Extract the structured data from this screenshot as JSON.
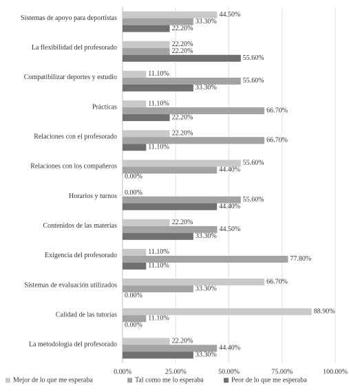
{
  "chart_data": {
    "type": "bar",
    "orientation": "horizontal",
    "categories": [
      "Sistemas de apoyo para deportistas",
      "La flexibilidad del profesorado",
      "Compatibilizar deportes y estudio",
      "Prácticas",
      "Relaciones con el profesorado",
      "Relaciones con los compañeros",
      "Horarios y turnos",
      "Contenidos de las materias",
      "Exigencia del profesorado",
      "Sistemas de evaluación utilizados",
      "Calidad de las tutorías",
      "La metodología del profesorado"
    ],
    "series": [
      {
        "name": "Mejor de lo que me esperaba",
        "color": "#c9c9c9",
        "values": [
          44.5,
          22.2,
          11.1,
          11.1,
          22.2,
          55.6,
          0,
          22.2,
          11.1,
          66.7,
          88.9,
          22.2
        ],
        "value_labels": [
          "44.50%",
          "22.20%",
          "11.10%",
          "11.10%",
          "22.20%",
          "55.60%",
          "0.00%",
          "22.20%",
          "11.10%",
          "66.70%",
          "88.90%",
          "22.20%"
        ]
      },
      {
        "name": "Tal como me lo esperaba",
        "color": "#a3a3a3",
        "values": [
          33.3,
          22.2,
          55.6,
          66.7,
          66.7,
          44.4,
          55.6,
          44.5,
          77.8,
          33.3,
          11.1,
          44.4
        ],
        "value_labels": [
          "33.30%",
          "22.20%",
          "55.60%",
          "66.70%",
          "66.70%",
          "44.40%",
          "55.60%",
          "44.50%",
          "77.80%",
          "33.30%",
          "11.10%",
          "44.40%"
        ]
      },
      {
        "name": "Peor de lo que me esperaba",
        "color": "#707070",
        "values": [
          22.2,
          55.6,
          33.3,
          22.2,
          11.1,
          0,
          44.4,
          33.3,
          11.1,
          0,
          0,
          33.3
        ],
        "value_labels": [
          "22.20%",
          "55.60%",
          "33.30%",
          "22.20%",
          "11.10%",
          "0.00%",
          "44.40%",
          "33.30%",
          "11.10%",
          "0.00%",
          "0.00%",
          "33.30%"
        ]
      }
    ],
    "xlim": [
      0,
      100
    ],
    "xticks": [
      {
        "value": 0,
        "label": "0.00%"
      },
      {
        "value": 25,
        "label": "25.00%"
      },
      {
        "value": 50,
        "label": "50.00%"
      },
      {
        "value": 75,
        "label": "75.00%"
      },
      {
        "value": 100,
        "label": "100.00%"
      }
    ],
    "grid": true,
    "legend": "bottom"
  }
}
